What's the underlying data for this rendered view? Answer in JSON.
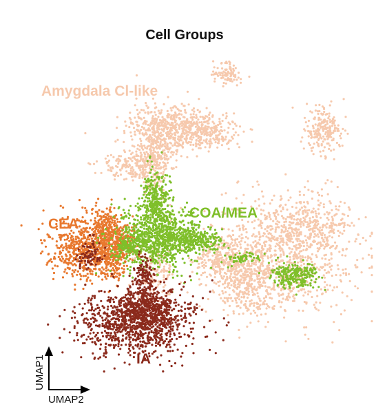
{
  "chart_data": {
    "type": "scatter",
    "title": "Cell Groups",
    "xlabel": "UMAP2",
    "ylabel": "UMAP1",
    "grid": false,
    "legend": "labels placed directly on clusters",
    "series": [
      {
        "name": "Amygdala Cl-like",
        "color": "#f6c9ad"
      },
      {
        "name": "CEA",
        "color": "#e8782e"
      },
      {
        "name": "COA/MEA",
        "color": "#7fbf2a"
      },
      {
        "name": "IA",
        "color": "#8b2a1c"
      }
    ]
  }
}
